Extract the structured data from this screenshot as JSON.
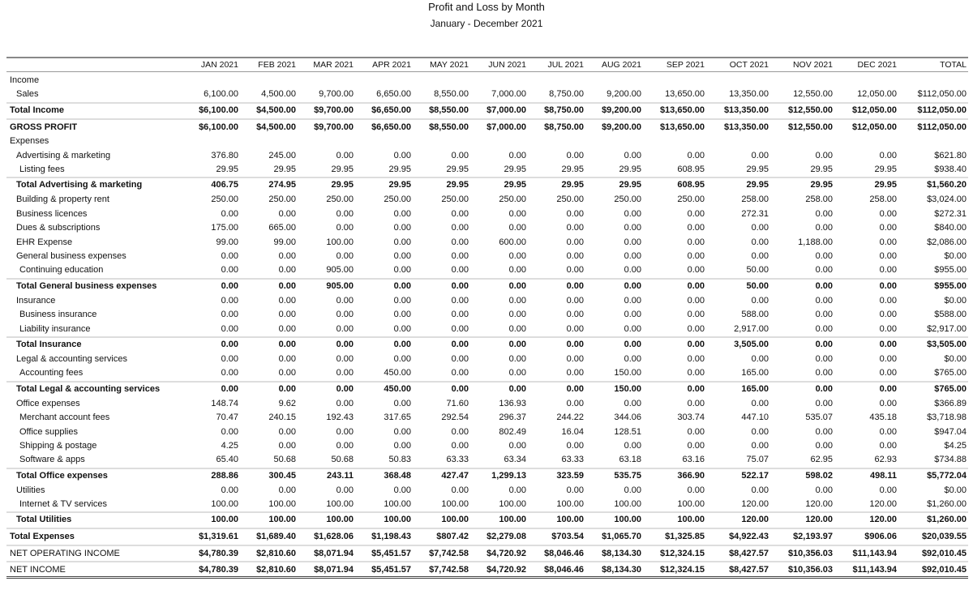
{
  "report": {
    "title": "Profit and Loss by Month",
    "subtitle": "January - December 2021",
    "columns": [
      "JAN 2021",
      "FEB 2021",
      "MAR 2021",
      "APR 2021",
      "MAY 2021",
      "JUN 2021",
      "JUL 2021",
      "AUG 2021",
      "SEP 2021",
      "OCT 2021",
      "NOV 2021",
      "DEC 2021",
      "TOTAL"
    ],
    "rows": [
      {
        "label": "Income",
        "indent": 0,
        "type": "section",
        "values": []
      },
      {
        "label": "Sales",
        "indent": 1,
        "type": "normal",
        "values": [
          "6,100.00",
          "4,500.00",
          "9,700.00",
          "6,650.00",
          "8,550.00",
          "7,000.00",
          "8,750.00",
          "9,200.00",
          "13,650.00",
          "13,350.00",
          "12,550.00",
          "12,050.00",
          "$112,050.00"
        ]
      },
      {
        "label": "Total Income",
        "indent": 0,
        "type": "total",
        "values": [
          "$6,100.00",
          "$4,500.00",
          "$9,700.00",
          "$6,650.00",
          "$8,550.00",
          "$7,000.00",
          "$8,750.00",
          "$9,200.00",
          "$13,650.00",
          "$13,350.00",
          "$12,550.00",
          "$12,050.00",
          "$112,050.00"
        ]
      },
      {
        "label": "GROSS PROFIT",
        "indent": 0,
        "type": "grand",
        "values": [
          "$6,100.00",
          "$4,500.00",
          "$9,700.00",
          "$6,650.00",
          "$8,550.00",
          "$7,000.00",
          "$8,750.00",
          "$9,200.00",
          "$13,650.00",
          "$13,350.00",
          "$12,550.00",
          "$12,050.00",
          "$112,050.00"
        ]
      },
      {
        "label": "Expenses",
        "indent": 0,
        "type": "section",
        "values": []
      },
      {
        "label": "Advertising & marketing",
        "indent": 1,
        "type": "normal",
        "values": [
          "376.80",
          "245.00",
          "0.00",
          "0.00",
          "0.00",
          "0.00",
          "0.00",
          "0.00",
          "0.00",
          "0.00",
          "0.00",
          "0.00",
          "$621.80"
        ]
      },
      {
        "label": "Listing fees",
        "indent": 2,
        "type": "normal",
        "values": [
          "29.95",
          "29.95",
          "29.95",
          "29.95",
          "29.95",
          "29.95",
          "29.95",
          "29.95",
          "608.95",
          "29.95",
          "29.95",
          "29.95",
          "$938.40"
        ]
      },
      {
        "label": "Total Advertising & marketing",
        "indent": 1,
        "type": "total",
        "values": [
          "406.75",
          "274.95",
          "29.95",
          "29.95",
          "29.95",
          "29.95",
          "29.95",
          "29.95",
          "608.95",
          "29.95",
          "29.95",
          "29.95",
          "$1,560.20"
        ]
      },
      {
        "label": "Building & property rent",
        "indent": 1,
        "type": "normal",
        "values": [
          "250.00",
          "250.00",
          "250.00",
          "250.00",
          "250.00",
          "250.00",
          "250.00",
          "250.00",
          "250.00",
          "258.00",
          "258.00",
          "258.00",
          "$3,024.00"
        ]
      },
      {
        "label": "Business licences",
        "indent": 1,
        "type": "normal",
        "values": [
          "0.00",
          "0.00",
          "0.00",
          "0.00",
          "0.00",
          "0.00",
          "0.00",
          "0.00",
          "0.00",
          "272.31",
          "0.00",
          "0.00",
          "$272.31"
        ]
      },
      {
        "label": "Dues & subscriptions",
        "indent": 1,
        "type": "normal",
        "values": [
          "175.00",
          "665.00",
          "0.00",
          "0.00",
          "0.00",
          "0.00",
          "0.00",
          "0.00",
          "0.00",
          "0.00",
          "0.00",
          "0.00",
          "$840.00"
        ]
      },
      {
        "label": "EHR Expense",
        "indent": 1,
        "type": "normal",
        "values": [
          "99.00",
          "99.00",
          "100.00",
          "0.00",
          "0.00",
          "600.00",
          "0.00",
          "0.00",
          "0.00",
          "0.00",
          "1,188.00",
          "0.00",
          "$2,086.00"
        ]
      },
      {
        "label": "General business expenses",
        "indent": 1,
        "type": "normal",
        "values": [
          "0.00",
          "0.00",
          "0.00",
          "0.00",
          "0.00",
          "0.00",
          "0.00",
          "0.00",
          "0.00",
          "0.00",
          "0.00",
          "0.00",
          "$0.00"
        ]
      },
      {
        "label": "Continuing education",
        "indent": 2,
        "type": "normal",
        "values": [
          "0.00",
          "0.00",
          "905.00",
          "0.00",
          "0.00",
          "0.00",
          "0.00",
          "0.00",
          "0.00",
          "50.00",
          "0.00",
          "0.00",
          "$955.00"
        ]
      },
      {
        "label": "Total General business expenses",
        "indent": 1,
        "type": "total",
        "values": [
          "0.00",
          "0.00",
          "905.00",
          "0.00",
          "0.00",
          "0.00",
          "0.00",
          "0.00",
          "0.00",
          "50.00",
          "0.00",
          "0.00",
          "$955.00"
        ]
      },
      {
        "label": "Insurance",
        "indent": 1,
        "type": "normal",
        "values": [
          "0.00",
          "0.00",
          "0.00",
          "0.00",
          "0.00",
          "0.00",
          "0.00",
          "0.00",
          "0.00",
          "0.00",
          "0.00",
          "0.00",
          "$0.00"
        ]
      },
      {
        "label": "Business insurance",
        "indent": 2,
        "type": "normal",
        "values": [
          "0.00",
          "0.00",
          "0.00",
          "0.00",
          "0.00",
          "0.00",
          "0.00",
          "0.00",
          "0.00",
          "588.00",
          "0.00",
          "0.00",
          "$588.00"
        ]
      },
      {
        "label": "Liability insurance",
        "indent": 2,
        "type": "normal",
        "values": [
          "0.00",
          "0.00",
          "0.00",
          "0.00",
          "0.00",
          "0.00",
          "0.00",
          "0.00",
          "0.00",
          "2,917.00",
          "0.00",
          "0.00",
          "$2,917.00"
        ]
      },
      {
        "label": "Total Insurance",
        "indent": 1,
        "type": "total",
        "values": [
          "0.00",
          "0.00",
          "0.00",
          "0.00",
          "0.00",
          "0.00",
          "0.00",
          "0.00",
          "0.00",
          "3,505.00",
          "0.00",
          "0.00",
          "$3,505.00"
        ]
      },
      {
        "label": "Legal & accounting services",
        "indent": 1,
        "type": "normal",
        "values": [
          "0.00",
          "0.00",
          "0.00",
          "0.00",
          "0.00",
          "0.00",
          "0.00",
          "0.00",
          "0.00",
          "0.00",
          "0.00",
          "0.00",
          "$0.00"
        ]
      },
      {
        "label": "Accounting fees",
        "indent": 2,
        "type": "normal",
        "values": [
          "0.00",
          "0.00",
          "0.00",
          "450.00",
          "0.00",
          "0.00",
          "0.00",
          "150.00",
          "0.00",
          "165.00",
          "0.00",
          "0.00",
          "$765.00"
        ]
      },
      {
        "label": "Total Legal & accounting services",
        "indent": 1,
        "type": "total",
        "values": [
          "0.00",
          "0.00",
          "0.00",
          "450.00",
          "0.00",
          "0.00",
          "0.00",
          "150.00",
          "0.00",
          "165.00",
          "0.00",
          "0.00",
          "$765.00"
        ]
      },
      {
        "label": "Office expenses",
        "indent": 1,
        "type": "normal",
        "values": [
          "148.74",
          "9.62",
          "0.00",
          "0.00",
          "71.60",
          "136.93",
          "0.00",
          "0.00",
          "0.00",
          "0.00",
          "0.00",
          "0.00",
          "$366.89"
        ]
      },
      {
        "label": "Merchant account fees",
        "indent": 2,
        "type": "normal",
        "values": [
          "70.47",
          "240.15",
          "192.43",
          "317.65",
          "292.54",
          "296.37",
          "244.22",
          "344.06",
          "303.74",
          "447.10",
          "535.07",
          "435.18",
          "$3,718.98"
        ]
      },
      {
        "label": "Office supplies",
        "indent": 2,
        "type": "normal",
        "values": [
          "0.00",
          "0.00",
          "0.00",
          "0.00",
          "0.00",
          "802.49",
          "16.04",
          "128.51",
          "0.00",
          "0.00",
          "0.00",
          "0.00",
          "$947.04"
        ]
      },
      {
        "label": "Shipping & postage",
        "indent": 2,
        "type": "normal",
        "values": [
          "4.25",
          "0.00",
          "0.00",
          "0.00",
          "0.00",
          "0.00",
          "0.00",
          "0.00",
          "0.00",
          "0.00",
          "0.00",
          "0.00",
          "$4.25"
        ]
      },
      {
        "label": "Software & apps",
        "indent": 2,
        "type": "normal",
        "values": [
          "65.40",
          "50.68",
          "50.68",
          "50.83",
          "63.33",
          "63.34",
          "63.33",
          "63.18",
          "63.16",
          "75.07",
          "62.95",
          "62.93",
          "$734.88"
        ]
      },
      {
        "label": "Total Office expenses",
        "indent": 1,
        "type": "total",
        "values": [
          "288.86",
          "300.45",
          "243.11",
          "368.48",
          "427.47",
          "1,299.13",
          "323.59",
          "535.75",
          "366.90",
          "522.17",
          "598.02",
          "498.11",
          "$5,772.04"
        ]
      },
      {
        "label": "Utilities",
        "indent": 1,
        "type": "normal",
        "values": [
          "0.00",
          "0.00",
          "0.00",
          "0.00",
          "0.00",
          "0.00",
          "0.00",
          "0.00",
          "0.00",
          "0.00",
          "0.00",
          "0.00",
          "$0.00"
        ]
      },
      {
        "label": "Internet & TV services",
        "indent": 2,
        "type": "normal",
        "values": [
          "100.00",
          "100.00",
          "100.00",
          "100.00",
          "100.00",
          "100.00",
          "100.00",
          "100.00",
          "100.00",
          "120.00",
          "120.00",
          "120.00",
          "$1,260.00"
        ]
      },
      {
        "label": "Total Utilities",
        "indent": 1,
        "type": "total",
        "values": [
          "100.00",
          "100.00",
          "100.00",
          "100.00",
          "100.00",
          "100.00",
          "100.00",
          "100.00",
          "100.00",
          "120.00",
          "120.00",
          "120.00",
          "$1,260.00"
        ]
      },
      {
        "label": "Total Expenses",
        "indent": 0,
        "type": "grand",
        "values": [
          "$1,319.61",
          "$1,689.40",
          "$1,628.06",
          "$1,198.43",
          "$807.42",
          "$2,279.08",
          "$703.54",
          "$1,065.70",
          "$1,325.85",
          "$4,922.43",
          "$2,193.97",
          "$906.06",
          "$20,039.55"
        ]
      },
      {
        "label": "NET OPERATING INCOME",
        "indent": 0,
        "type": "grand-plain",
        "values": [
          "$4,780.39",
          "$2,810.60",
          "$8,071.94",
          "$5,451.57",
          "$7,742.58",
          "$4,720.92",
          "$8,046.46",
          "$8,134.30",
          "$12,324.15",
          "$8,427.57",
          "$10,356.03",
          "$11,143.94",
          "$92,010.45"
        ]
      },
      {
        "label": "NET INCOME",
        "indent": 0,
        "type": "grand-plain-last",
        "values": [
          "$4,780.39",
          "$2,810.60",
          "$8,071.94",
          "$5,451.57",
          "$7,742.58",
          "$4,720.92",
          "$8,046.46",
          "$8,134.30",
          "$12,324.15",
          "$8,427.57",
          "$10,356.03",
          "$11,143.94",
          "$92,010.45"
        ]
      }
    ]
  }
}
